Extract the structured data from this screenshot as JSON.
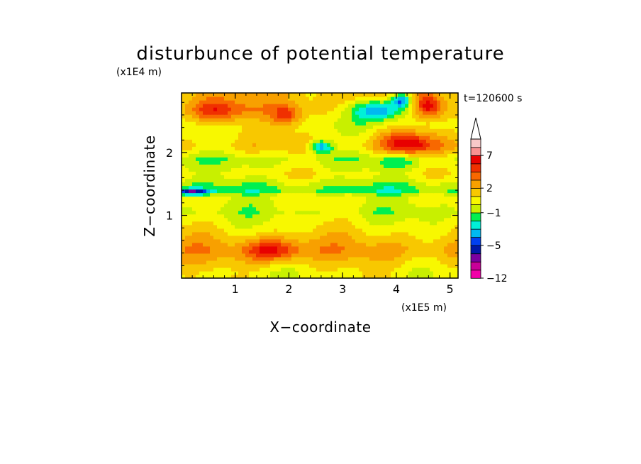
{
  "chart_data": {
    "type": "heatmap",
    "title": "disturbunce of potential temperature",
    "xlabel": "X−coordinate",
    "ylabel": "Z−coordinate",
    "x_unit": "(x1E5 m)",
    "z_unit": "(x1E4 m)",
    "time_label": "t=120600 s",
    "xlim": [
      0,
      5.15
    ],
    "ylim": [
      0,
      2.95
    ],
    "x_ticks": [
      "1",
      "2",
      "3",
      "4",
      "5"
    ],
    "x_tick_values": [
      1,
      2,
      3,
      4,
      5
    ],
    "z_ticks": [
      "1",
      "2"
    ],
    "z_tick_values": [
      1,
      2
    ],
    "colorbar": {
      "levels": [
        -12,
        -10,
        -8,
        -6,
        -5,
        -4,
        -3,
        -2,
        -1,
        0,
        1,
        2,
        3,
        4,
        5,
        7,
        9,
        11
      ],
      "tick_labels": [
        "−12",
        "−5",
        "−1",
        "2",
        "7"
      ],
      "tick_values": [
        -12,
        -5,
        -1,
        2,
        7
      ],
      "colors": [
        "#f000a8",
        "#c80098",
        "#7a00a0",
        "#0018a8",
        "#0040f0",
        "#00b8f0",
        "#00f0d8",
        "#00f050",
        "#c8f000",
        "#f8f800",
        "#f8c800",
        "#f8a000",
        "#f86800",
        "#f03000",
        "#e80000",
        "#f89090",
        "#f8c8c8"
      ],
      "extend_max": true
    },
    "bands": [
      {
        "z": 0.1,
        "value": 0.5
      },
      {
        "z": 0.45,
        "value": 2.5
      },
      {
        "z": 0.8,
        "value": 0.8
      },
      {
        "z": 1.05,
        "value": -0.3
      },
      {
        "z": 1.3,
        "value": 0.3
      },
      {
        "z": 1.4,
        "value": -1.5
      },
      {
        "z": 1.65,
        "value": 0.6
      },
      {
        "z": 1.9,
        "value": -0.5
      },
      {
        "z": 2.1,
        "value": 1.5
      },
      {
        "z": 2.45,
        "value": 0.2
      },
      {
        "z": 2.7,
        "value": 1.8
      }
    ],
    "features": [
      {
        "x": 0.65,
        "z": 2.65,
        "rx": 0.5,
        "rz": 0.2,
        "value": 3.5
      },
      {
        "x": 1.95,
        "z": 2.58,
        "rx": 0.3,
        "rz": 0.18,
        "value": 3.2
      },
      {
        "x": 3.7,
        "z": 2.68,
        "rx": 0.55,
        "rz": 0.16,
        "value": -5.5
      },
      {
        "x": 4.1,
        "z": 2.85,
        "rx": 0.2,
        "rz": 0.12,
        "value": -6
      },
      {
        "x": 2.6,
        "z": 2.1,
        "rx": 0.22,
        "rz": 0.1,
        "value": -5
      },
      {
        "x": 4.2,
        "z": 2.15,
        "rx": 0.5,
        "rz": 0.18,
        "value": 4.5
      },
      {
        "x": 4.0,
        "z": 1.85,
        "rx": 0.35,
        "rz": 0.1,
        "value": -1.5
      },
      {
        "x": 0.2,
        "z": 1.38,
        "rx": 0.3,
        "rz": 0.05,
        "value": -5
      },
      {
        "x": 1.7,
        "z": 0.45,
        "rx": 0.5,
        "rz": 0.18,
        "value": 3.5
      },
      {
        "x": 4.6,
        "z": 2.75,
        "rx": 0.25,
        "rz": 0.2,
        "value": 4.0
      }
    ]
  }
}
